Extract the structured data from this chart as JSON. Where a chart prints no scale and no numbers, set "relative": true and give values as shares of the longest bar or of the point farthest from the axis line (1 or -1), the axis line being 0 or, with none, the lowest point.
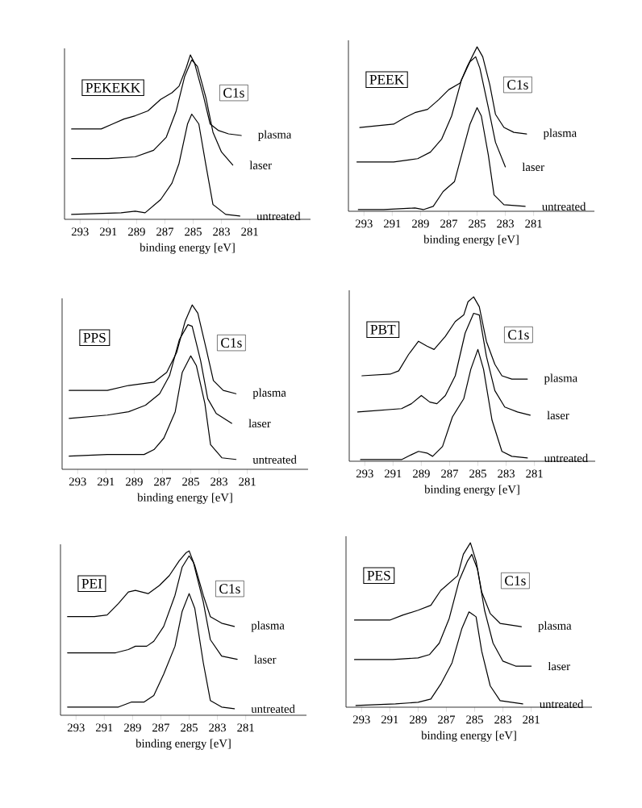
{
  "chart_data": [
    {
      "type": "line",
      "title": "PEKEKK",
      "xlabel": "binding energy [eV]",
      "annotations": [
        "C1s"
      ],
      "relative": true,
      "xlim": [
        294.1,
        276.7
      ],
      "xticks": [
        293,
        291,
        289,
        287,
        285,
        283,
        281
      ],
      "series": [
        {
          "name": "plasma",
          "color": "#000000",
          "x": [
            293.6,
            291.5,
            290.7,
            289.9,
            289.1,
            288.2,
            287.3,
            286.5,
            286.0,
            285.5,
            285.2,
            284.9,
            284.3,
            283.8,
            283.2,
            282.5,
            281.6
          ],
          "values": [
            0.55,
            0.55,
            0.58,
            0.61,
            0.63,
            0.66,
            0.73,
            0.77,
            0.81,
            0.92,
            1.0,
            0.95,
            0.76,
            0.58,
            0.54,
            0.52,
            0.51
          ]
        },
        {
          "name": "laser",
          "color": "#000000",
          "x": [
            293.6,
            291.0,
            289.1,
            287.8,
            286.9,
            286.2,
            285.6,
            285.1,
            284.7,
            284.1,
            283.6,
            283.0,
            282.2
          ],
          "values": [
            0.37,
            0.37,
            0.38,
            0.42,
            0.5,
            0.66,
            0.87,
            0.97,
            0.93,
            0.74,
            0.53,
            0.41,
            0.33
          ]
        },
        {
          "name": "untreated",
          "color": "#000000",
          "x": [
            293.6,
            290.1,
            289.1,
            288.4,
            287.3,
            286.5,
            286.0,
            285.4,
            285.1,
            284.6,
            284.1,
            283.6,
            282.7,
            281.7
          ],
          "values": [
            0.03,
            0.04,
            0.05,
            0.04,
            0.12,
            0.22,
            0.34,
            0.58,
            0.64,
            0.58,
            0.33,
            0.09,
            0.03,
            0.02
          ]
        }
      ]
    },
    {
      "type": "line",
      "title": "PEEK",
      "xlabel": "binding energy [eV]",
      "annotations": [
        "C1s"
      ],
      "relative": true,
      "xlim": [
        294.1,
        276.7
      ],
      "xticks": [
        293,
        291,
        289,
        287,
        285,
        283,
        281
      ],
      "series": [
        {
          "name": "plasma",
          "color": "#000000",
          "x": [
            293.3,
            290.9,
            290.1,
            289.4,
            288.5,
            287.7,
            287.0,
            286.2,
            285.7,
            285.0,
            284.6,
            284.1,
            283.7,
            283.1,
            282.4,
            281.5
          ],
          "values": [
            0.51,
            0.53,
            0.57,
            0.6,
            0.62,
            0.68,
            0.74,
            0.78,
            0.88,
            1.0,
            0.94,
            0.77,
            0.59,
            0.51,
            0.48,
            0.47
          ]
        },
        {
          "name": "laser",
          "color": "#000000",
          "x": [
            293.5,
            290.9,
            289.2,
            288.3,
            287.5,
            286.8,
            286.1,
            285.5,
            285.1,
            284.8,
            284.2,
            283.7,
            283.0
          ],
          "values": [
            0.3,
            0.3,
            0.32,
            0.36,
            0.44,
            0.58,
            0.8,
            0.91,
            0.94,
            0.87,
            0.63,
            0.42,
            0.27
          ]
        },
        {
          "name": "untreated",
          "color": "#000000",
          "x": [
            293.4,
            291.6,
            289.4,
            288.8,
            288.1,
            287.4,
            286.6,
            286.1,
            285.5,
            285.0,
            284.7,
            284.2,
            283.8,
            283.1,
            281.6
          ],
          "values": [
            0.01,
            0.01,
            0.02,
            0.01,
            0.03,
            0.12,
            0.18,
            0.34,
            0.53,
            0.63,
            0.58,
            0.34,
            0.1,
            0.04,
            0.03
          ]
        }
      ]
    },
    {
      "type": "line",
      "title": "PPS",
      "xlabel": "binding energy [eV]",
      "annotations": [
        "C1s"
      ],
      "relative": true,
      "xlim": [
        294.1,
        276.7
      ],
      "xticks": [
        293,
        291,
        289,
        287,
        285,
        283,
        281
      ],
      "series": [
        {
          "name": "plasma",
          "color": "#000000",
          "x": [
            293.6,
            290.9,
            289.4,
            288.5,
            287.6,
            286.7,
            286.0,
            285.4,
            284.9,
            284.5,
            283.9,
            283.4,
            282.7,
            281.8
          ],
          "values": [
            0.48,
            0.48,
            0.51,
            0.52,
            0.53,
            0.59,
            0.71,
            0.9,
            1.0,
            0.95,
            0.73,
            0.54,
            0.48,
            0.46
          ]
        },
        {
          "name": "laser",
          "color": "#000000",
          "x": [
            293.6,
            290.9,
            289.4,
            288.2,
            287.2,
            286.5,
            285.8,
            285.2,
            284.9,
            284.3,
            283.8,
            283.2,
            282.1
          ],
          "values": [
            0.31,
            0.33,
            0.35,
            0.39,
            0.46,
            0.57,
            0.79,
            0.88,
            0.87,
            0.66,
            0.43,
            0.34,
            0.28
          ]
        },
        {
          "name": "untreated",
          "color": "#000000",
          "x": [
            293.6,
            290.9,
            288.3,
            287.6,
            286.9,
            286.1,
            285.6,
            285.0,
            284.6,
            284.0,
            283.6,
            282.8,
            281.8
          ],
          "values": [
            0.08,
            0.09,
            0.09,
            0.12,
            0.19,
            0.35,
            0.59,
            0.69,
            0.63,
            0.4,
            0.15,
            0.07,
            0.06
          ]
        }
      ]
    },
    {
      "type": "line",
      "title": "PBT",
      "xlabel": "binding energy [eV]",
      "annotations": [
        "C1s"
      ],
      "relative": true,
      "xlim": [
        294.1,
        276.7
      ],
      "xticks": [
        293,
        291,
        289,
        287,
        285,
        283,
        281
      ],
      "series": [
        {
          "name": "plasma",
          "color": "#000000",
          "x": [
            293.2,
            291.2,
            290.6,
            289.9,
            289.2,
            288.6,
            288.1,
            287.3,
            286.6,
            286.0,
            285.7,
            285.3,
            284.9,
            284.4,
            283.8,
            283.3,
            282.6,
            281.5
          ],
          "values": [
            0.52,
            0.53,
            0.55,
            0.65,
            0.73,
            0.7,
            0.68,
            0.76,
            0.85,
            0.89,
            0.97,
            1.0,
            0.94,
            0.73,
            0.59,
            0.52,
            0.5,
            0.5
          ]
        },
        {
          "name": "laser",
          "color": "#000000",
          "x": [
            293.5,
            290.4,
            289.7,
            289.0,
            288.4,
            287.9,
            287.3,
            286.6,
            285.9,
            285.3,
            284.9,
            284.4,
            283.8,
            283.1,
            282.2,
            281.3
          ],
          "values": [
            0.3,
            0.32,
            0.35,
            0.4,
            0.36,
            0.35,
            0.4,
            0.52,
            0.78,
            0.9,
            0.89,
            0.64,
            0.43,
            0.33,
            0.3,
            0.28
          ]
        },
        {
          "name": "untreated",
          "color": "#000000",
          "x": [
            293.3,
            290.4,
            289.7,
            289.2,
            288.6,
            288.2,
            287.5,
            286.8,
            286.0,
            285.5,
            285.0,
            284.6,
            284.0,
            283.3,
            282.6,
            281.5
          ],
          "values": [
            0.01,
            0.01,
            0.04,
            0.06,
            0.05,
            0.03,
            0.09,
            0.27,
            0.38,
            0.56,
            0.68,
            0.56,
            0.25,
            0.06,
            0.03,
            0.02
          ]
        }
      ]
    },
    {
      "type": "line",
      "title": "PEI",
      "xlabel": "binding energy [eV]",
      "annotations": [
        "C1s"
      ],
      "relative": true,
      "xlim": [
        294.1,
        276.7
      ],
      "xticks": [
        293,
        291,
        289,
        287,
        285,
        283,
        281
      ],
      "series": [
        {
          "name": "plasma",
          "color": "#000000",
          "x": [
            293.6,
            291.7,
            290.8,
            290.0,
            289.3,
            288.8,
            287.9,
            287.1,
            286.4,
            285.7,
            285.2,
            285.0,
            284.6,
            284.0,
            283.5,
            282.7,
            281.8
          ],
          "values": [
            0.6,
            0.6,
            0.61,
            0.68,
            0.75,
            0.76,
            0.74,
            0.79,
            0.85,
            0.94,
            0.99,
            1.0,
            0.91,
            0.73,
            0.6,
            0.56,
            0.54
          ]
        },
        {
          "name": "laser",
          "color": "#000000",
          "x": [
            293.6,
            290.2,
            289.3,
            288.8,
            288.0,
            287.5,
            286.8,
            286.0,
            285.5,
            285.0,
            284.7,
            284.0,
            283.5,
            282.7,
            281.6
          ],
          "values": [
            0.38,
            0.38,
            0.4,
            0.42,
            0.42,
            0.45,
            0.54,
            0.73,
            0.9,
            0.97,
            0.93,
            0.69,
            0.46,
            0.36,
            0.34
          ]
        },
        {
          "name": "untreated",
          "color": "#000000",
          "x": [
            293.6,
            290.0,
            289.1,
            288.2,
            287.5,
            286.8,
            286.0,
            285.5,
            285.0,
            284.6,
            284.0,
            283.5,
            282.7,
            281.8
          ],
          "values": [
            0.05,
            0.05,
            0.08,
            0.08,
            0.12,
            0.25,
            0.42,
            0.63,
            0.74,
            0.65,
            0.32,
            0.09,
            0.05,
            0.04
          ]
        }
      ]
    },
    {
      "type": "line",
      "title": "PES",
      "xlabel": "binding energy [eV]",
      "annotations": [
        "C1s"
      ],
      "relative": true,
      "xlim": [
        294.1,
        276.7
      ],
      "xticks": [
        293,
        291,
        289,
        287,
        285,
        283,
        281
      ],
      "series": [
        {
          "name": "plasma",
          "color": "#000000",
          "x": [
            293.5,
            291.0,
            290.1,
            289.0,
            288.1,
            287.4,
            286.6,
            286.2,
            285.8,
            285.3,
            284.9,
            284.5,
            283.9,
            283.2,
            281.7
          ],
          "values": [
            0.53,
            0.53,
            0.56,
            0.59,
            0.62,
            0.71,
            0.77,
            0.8,
            0.93,
            1.0,
            0.89,
            0.7,
            0.57,
            0.51,
            0.49
          ]
        },
        {
          "name": "laser",
          "color": "#000000",
          "x": [
            293.5,
            290.8,
            289.0,
            288.2,
            287.5,
            286.8,
            286.1,
            285.5,
            285.2,
            284.8,
            284.3,
            283.7,
            283.0,
            282.1,
            281.0
          ],
          "values": [
            0.29,
            0.29,
            0.3,
            0.32,
            0.39,
            0.54,
            0.77,
            0.89,
            0.93,
            0.84,
            0.59,
            0.39,
            0.28,
            0.25,
            0.25
          ]
        },
        {
          "name": "untreated",
          "color": "#000000",
          "x": [
            293.4,
            290.6,
            289.0,
            288.1,
            287.4,
            286.6,
            285.9,
            285.4,
            284.9,
            284.5,
            283.9,
            283.2,
            281.6
          ],
          "values": [
            0.01,
            0.02,
            0.03,
            0.05,
            0.14,
            0.27,
            0.48,
            0.58,
            0.55,
            0.34,
            0.13,
            0.04,
            0.02
          ]
        }
      ]
    }
  ]
}
